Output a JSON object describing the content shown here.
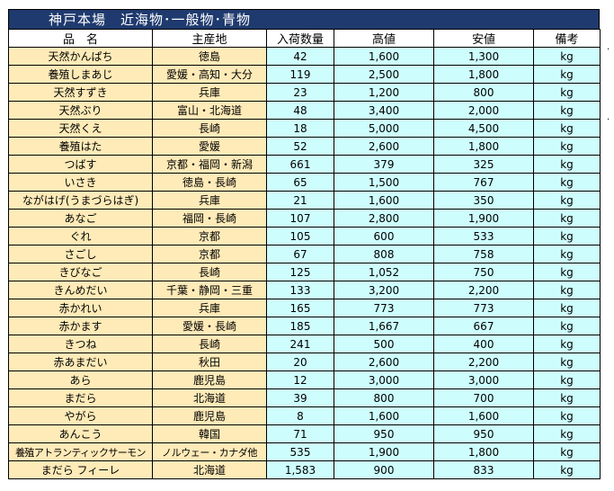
{
  "title": "神戸本場　近海物･一般物･青物",
  "headers": {
    "name": "品　名",
    "origin": "主産地",
    "quantity": "入荷数量",
    "high": "高値",
    "low": "安値",
    "note": "備考"
  },
  "rows": [
    {
      "name": "天然かんぱち",
      "origin": "徳島",
      "quantity": "42",
      "high": "1,600",
      "low": "1,300",
      "unit": "kg"
    },
    {
      "name": "養殖しまあじ",
      "origin": "愛媛・高知・大分",
      "quantity": "119",
      "high": "2,500",
      "low": "1,800",
      "unit": "kg"
    },
    {
      "name": "天然すずき",
      "origin": "兵庫",
      "quantity": "23",
      "high": "1,200",
      "low": "800",
      "unit": "kg"
    },
    {
      "name": "天然ぶり",
      "origin": "富山・北海道",
      "quantity": "48",
      "high": "3,400",
      "low": "2,000",
      "unit": "kg"
    },
    {
      "name": "天然くえ",
      "origin": "長崎",
      "quantity": "18",
      "high": "5,000",
      "low": "4,500",
      "unit": "kg"
    },
    {
      "name": "養殖はた",
      "origin": "愛媛",
      "quantity": "52",
      "high": "2,600",
      "low": "1,800",
      "unit": "kg"
    },
    {
      "name": "つばす",
      "origin": "京都・福岡・新潟",
      "quantity": "661",
      "high": "379",
      "low": "325",
      "unit": "kg"
    },
    {
      "name": "いさき",
      "origin": "徳島・長崎",
      "quantity": "65",
      "high": "1,500",
      "low": "767",
      "unit": "kg"
    },
    {
      "name": "ながはげ(うまづらはぎ)",
      "origin": "兵庫",
      "quantity": "21",
      "high": "1,600",
      "low": "350",
      "unit": "kg"
    },
    {
      "name": "あなご",
      "origin": "福岡・長崎",
      "quantity": "107",
      "high": "2,800",
      "low": "1,900",
      "unit": "kg"
    },
    {
      "name": "ぐれ",
      "origin": "京都",
      "quantity": "105",
      "high": "600",
      "low": "533",
      "unit": "kg"
    },
    {
      "name": "さごし",
      "origin": "京都",
      "quantity": "67",
      "high": "808",
      "low": "758",
      "unit": "kg"
    },
    {
      "name": "きびなご",
      "origin": "長崎",
      "quantity": "125",
      "high": "1,052",
      "low": "750",
      "unit": "kg"
    },
    {
      "name": "きんめだい",
      "origin": "千葉・静岡・三重",
      "quantity": "133",
      "high": "3,200",
      "low": "2,200",
      "unit": "kg"
    },
    {
      "name": "赤かれい",
      "origin": "兵庫",
      "quantity": "165",
      "high": "773",
      "low": "773",
      "unit": "kg"
    },
    {
      "name": "赤かます",
      "origin": "愛媛・長崎",
      "quantity": "185",
      "high": "1,667",
      "low": "667",
      "unit": "kg"
    },
    {
      "name": "きつね",
      "origin": "長崎",
      "quantity": "241",
      "high": "500",
      "low": "400",
      "unit": "kg"
    },
    {
      "name": "赤あまだい",
      "origin": "秋田",
      "quantity": "20",
      "high": "2,600",
      "low": "2,200",
      "unit": "kg"
    },
    {
      "name": "あら",
      "origin": "鹿児島",
      "quantity": "12",
      "high": "3,000",
      "low": "3,000",
      "unit": "kg"
    },
    {
      "name": "まだら",
      "origin": "北海道",
      "quantity": "39",
      "high": "800",
      "low": "700",
      "unit": "kg"
    },
    {
      "name": "やがら",
      "origin": "鹿児島",
      "quantity": "8",
      "high": "1,600",
      "low": "1,600",
      "unit": "kg"
    },
    {
      "name": "あんこう",
      "origin": "韓国",
      "quantity": "71",
      "high": "950",
      "low": "950",
      "unit": "kg"
    },
    {
      "name": "養殖アトランティックサーモン",
      "origin": "ノルウェー・カナダ他",
      "quantity": "535",
      "high": "1,900",
      "low": "1,800",
      "unit": "kg"
    },
    {
      "name": "まだら フィーレ",
      "origin": "北海道",
      "quantity": "1,583",
      "high": "900",
      "low": "833",
      "unit": "kg"
    }
  ]
}
